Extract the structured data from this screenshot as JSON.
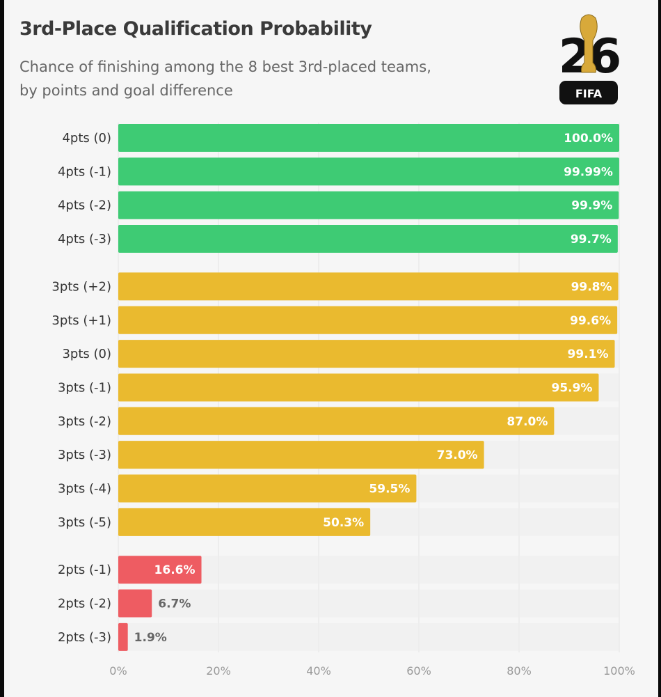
{
  "title": "3rd-Place Qualification Probability",
  "subtitle_line1": "Chance of finishing among the 8 best 3rd-placed teams,",
  "subtitle_line2": "by points and goal difference",
  "logo": {
    "numerals": "26",
    "text": "FIFA"
  },
  "chart_data": {
    "type": "bar",
    "orientation": "horizontal",
    "title": "3rd-Place Qualification Probability",
    "subtitle": "Chance of finishing among the 8 best 3rd-placed teams, by points and goal difference",
    "xlim": [
      0,
      100
    ],
    "x_ticks": [
      "0%",
      "20%",
      "40%",
      "60%",
      "80%",
      "100%"
    ],
    "grid": true,
    "groups": [
      {
        "color": "#3ecb74",
        "rows": [
          {
            "label": "4pts (0)",
            "value": 100.0,
            "value_label": "100.0%"
          },
          {
            "label": "4pts (-1)",
            "value": 99.99,
            "value_label": "99.99%"
          },
          {
            "label": "4pts (-2)",
            "value": 99.9,
            "value_label": "99.9%"
          },
          {
            "label": "4pts (-3)",
            "value": 99.7,
            "value_label": "99.7%"
          }
        ]
      },
      {
        "color": "#eaba2f",
        "rows": [
          {
            "label": "3pts (+2)",
            "value": 99.8,
            "value_label": "99.8%"
          },
          {
            "label": "3pts (+1)",
            "value": 99.6,
            "value_label": "99.6%"
          },
          {
            "label": "3pts (0)",
            "value": 99.1,
            "value_label": "99.1%"
          },
          {
            "label": "3pts (-1)",
            "value": 95.9,
            "value_label": "95.9%"
          },
          {
            "label": "3pts (-2)",
            "value": 87.0,
            "value_label": "87.0%"
          },
          {
            "label": "3pts (-3)",
            "value": 73.0,
            "value_label": "73.0%"
          },
          {
            "label": "3pts (-4)",
            "value": 59.5,
            "value_label": "59.5%"
          },
          {
            "label": "3pts (-5)",
            "value": 50.3,
            "value_label": "50.3%"
          }
        ]
      },
      {
        "color": "#ee5c62",
        "rows": [
          {
            "label": "2pts (-1)",
            "value": 16.6,
            "value_label": "16.6%"
          },
          {
            "label": "2pts (-2)",
            "value": 6.7,
            "value_label": "6.7%"
          },
          {
            "label": "2pts (-3)",
            "value": 1.9,
            "value_label": "1.9%"
          }
        ]
      }
    ]
  }
}
